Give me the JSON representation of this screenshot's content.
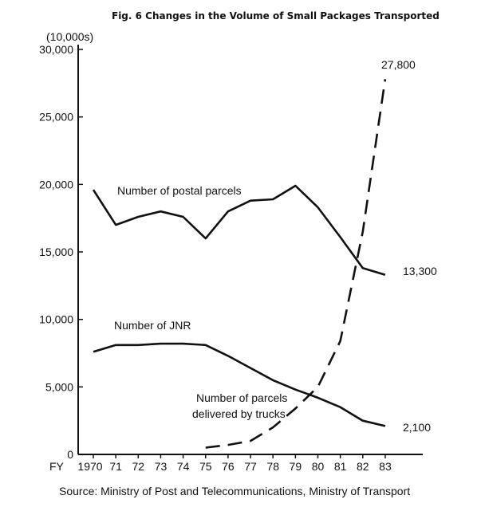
{
  "chart_data": {
    "type": "line",
    "title": "Fig. 6   Changes in the Volume of Small Packages Transported",
    "unit_label": "(10,000s)",
    "x_prefix": "FY",
    "x_tick_labels": [
      "1970",
      "71",
      "72",
      "73",
      "74",
      "75",
      "76",
      "77",
      "78",
      "79",
      "80",
      "81",
      "82",
      "83"
    ],
    "x": [
      1970,
      1971,
      1972,
      1973,
      1974,
      1975,
      1976,
      1977,
      1978,
      1979,
      1980,
      1981,
      1982,
      1983
    ],
    "xlim": [
      1970,
      1983
    ],
    "ylim": [
      0,
      30000
    ],
    "y_ticks": [
      0,
      5000,
      10000,
      15000,
      20000,
      25000,
      30000
    ],
    "y_tick_labels": [
      "0",
      "5,000",
      "10,000",
      "15,000",
      "20,000",
      "25,000",
      "30,000"
    ],
    "grid": false,
    "source": "Source: Ministry of Post and Telecommunications, Ministry of Transport",
    "series": [
      {
        "name": "Number of postal parcels",
        "style": "solid",
        "x": [
          1970,
          1971,
          1972,
          1973,
          1974,
          1975,
          1976,
          1977,
          1978,
          1979,
          1980,
          1981,
          1982,
          1983
        ],
        "values": [
          19600,
          17000,
          17600,
          18000,
          17600,
          16000,
          18000,
          18800,
          18900,
          19900,
          18300,
          16100,
          13800,
          13300
        ],
        "end_label": "13,300"
      },
      {
        "name": "Number of JNR",
        "style": "solid",
        "x": [
          1970,
          1971,
          1972,
          1973,
          1974,
          1975,
          1976,
          1977,
          1978,
          1979,
          1980,
          1981,
          1982,
          1983
        ],
        "values": [
          7600,
          8100,
          8100,
          8200,
          8200,
          8100,
          7300,
          6400,
          5500,
          4800,
          4200,
          3500,
          2500,
          2100
        ],
        "end_label": "2,100"
      },
      {
        "name": "Number of parcels delivered by trucks",
        "name_lines": [
          "Number of parcels",
          "delivered by trucks"
        ],
        "style": "dashed",
        "x": [
          1975,
          1976,
          1977,
          1978,
          1979,
          1980,
          1981,
          1982,
          1983
        ],
        "values": [
          500,
          700,
          1000,
          2000,
          3400,
          5000,
          8400,
          16500,
          27800
        ],
        "end_label": "27,800"
      }
    ]
  }
}
